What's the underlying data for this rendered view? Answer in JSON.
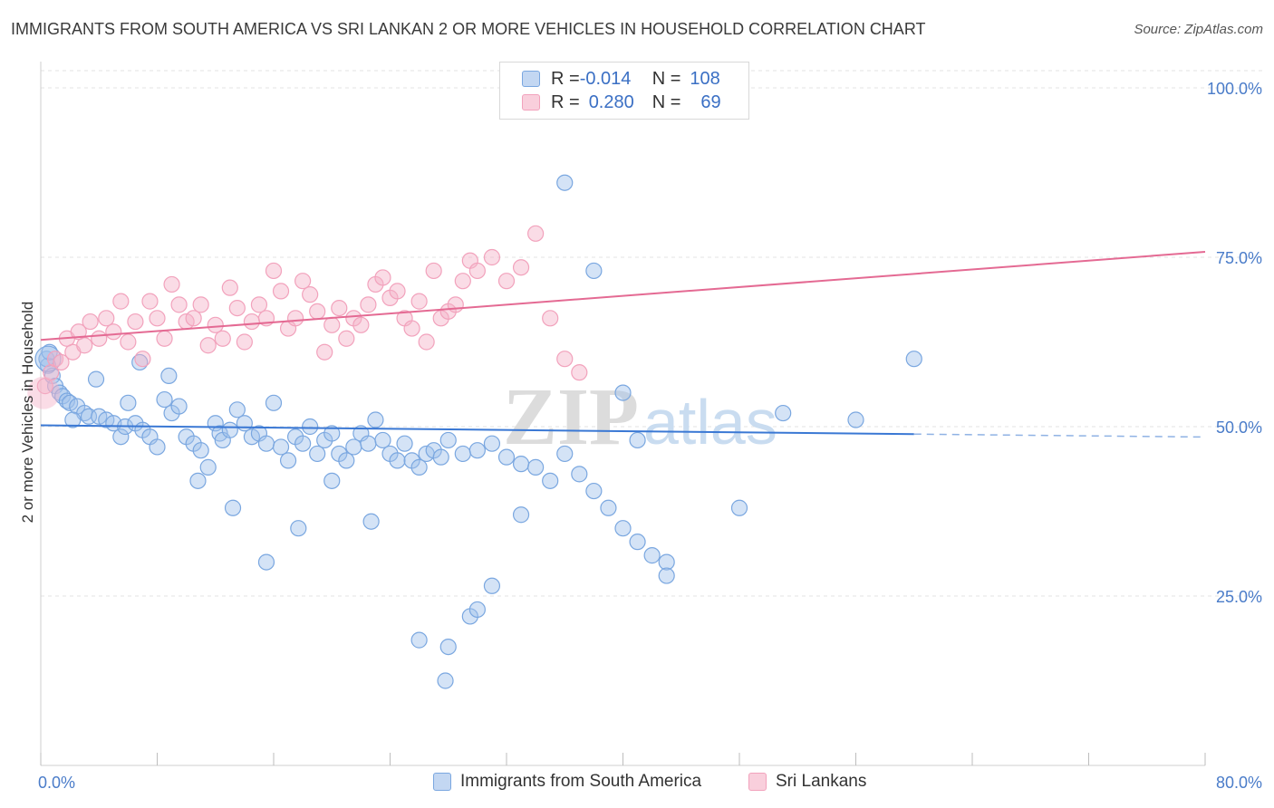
{
  "title": "IMMIGRANTS FROM SOUTH AMERICA VS SRI LANKAN 2 OR MORE VEHICLES IN HOUSEHOLD CORRELATION CHART",
  "source": "Source: ZipAtlas.com",
  "watermark": "ZIPatlas",
  "legend_top": {
    "rows": [
      {
        "r_label": "R = ",
        "r_value": "-0.014",
        "n_label": "N = ",
        "n_value": "108"
      },
      {
        "r_label": "R = ",
        "r_value": "0.280",
        "n_label": "N = ",
        "n_value": "69"
      }
    ]
  },
  "chart_data": {
    "type": "scatter",
    "title": "IMMIGRANTS FROM SOUTH AMERICA VS SRI LANKAN 2 OR MORE VEHICLES IN HOUSEHOLD CORRELATION CHART",
    "xlabel": "",
    "ylabel": "2 or more Vehicles in Household",
    "xlim": [
      0,
      80
    ],
    "ylim": [
      0,
      105
    ],
    "x_tick_labels": [
      "0.0%",
      "80.0%"
    ],
    "y_tick_labels": [
      "25.0%",
      "50.0%",
      "75.0%",
      "100.0%"
    ],
    "y_ticks": [
      25,
      50,
      75,
      100
    ],
    "grid": true,
    "legend_position": "bottom",
    "series": [
      {
        "name": "Immigrants from South America",
        "color": "#7aa7e0",
        "trend": {
          "x": [
            0,
            60
          ],
          "y": [
            50.2,
            48.9
          ],
          "dashed_to": 80
        },
        "points": [
          [
            0.5,
            59
          ],
          [
            0.8,
            57.5
          ],
          [
            1,
            56
          ],
          [
            1.3,
            55
          ],
          [
            1.5,
            54.5
          ],
          [
            1.8,
            53.8
          ],
          [
            2,
            53.5
          ],
          [
            2.5,
            53
          ],
          [
            3,
            52
          ],
          [
            3.3,
            51.5
          ],
          [
            4,
            51.5
          ],
          [
            4.5,
            51
          ],
          [
            5,
            50.5
          ],
          [
            5.5,
            48.5
          ],
          [
            5.8,
            50
          ],
          [
            6,
            53.5
          ],
          [
            6.5,
            50.5
          ],
          [
            7,
            49.5
          ],
          [
            7.5,
            48.5
          ],
          [
            8,
            47
          ],
          [
            8.5,
            54
          ],
          [
            9,
            52
          ],
          [
            9.5,
            53
          ],
          [
            10,
            48.5
          ],
          [
            10.5,
            47.5
          ],
          [
            11,
            46.5
          ],
          [
            11.5,
            44
          ],
          [
            12,
            50.5
          ],
          [
            12.3,
            49
          ],
          [
            12.5,
            48
          ],
          [
            13,
            49.5
          ],
          [
            13.5,
            52.5
          ],
          [
            14,
            50.5
          ],
          [
            14.5,
            48.5
          ],
          [
            15,
            49
          ],
          [
            15.5,
            47.5
          ],
          [
            16,
            53.5
          ],
          [
            16.5,
            47
          ],
          [
            17,
            45
          ],
          [
            17.5,
            48.5
          ],
          [
            18,
            47.5
          ],
          [
            18.5,
            50
          ],
          [
            19,
            46
          ],
          [
            19.5,
            48
          ],
          [
            20,
            49
          ],
          [
            20.5,
            46
          ],
          [
            21,
            45
          ],
          [
            21.5,
            47
          ],
          [
            22,
            49
          ],
          [
            22.5,
            47.5
          ],
          [
            23,
            51
          ],
          [
            23.5,
            48
          ],
          [
            24,
            46
          ],
          [
            24.5,
            45
          ],
          [
            25,
            47.5
          ],
          [
            25.5,
            45
          ],
          [
            26,
            44
          ],
          [
            26.5,
            46
          ],
          [
            27,
            46.5
          ],
          [
            27.5,
            45.5
          ],
          [
            28,
            48
          ],
          [
            29,
            46
          ],
          [
            30,
            46.5
          ],
          [
            31,
            47.5
          ],
          [
            32,
            45.5
          ],
          [
            33,
            44.5
          ],
          [
            34,
            44
          ],
          [
            35,
            42
          ],
          [
            36,
            46
          ],
          [
            37,
            43
          ],
          [
            38,
            40.5
          ],
          [
            39,
            38
          ],
          [
            40,
            35
          ],
          [
            41,
            33
          ],
          [
            42,
            31
          ],
          [
            43,
            30
          ],
          [
            0.4,
            60
          ],
          [
            0.6,
            61
          ],
          [
            2.2,
            51
          ],
          [
            3.8,
            57
          ],
          [
            6.8,
            59.5
          ],
          [
            8.8,
            57.5
          ],
          [
            10.8,
            42
          ],
          [
            13.2,
            38
          ],
          [
            15.5,
            30
          ],
          [
            17.7,
            35
          ],
          [
            20,
            42
          ],
          [
            22.7,
            36
          ],
          [
            26,
            18.5
          ],
          [
            27.8,
            12.5
          ],
          [
            28,
            17.5
          ],
          [
            29.5,
            22
          ],
          [
            30,
            23
          ],
          [
            31,
            26.5
          ],
          [
            33,
            37
          ],
          [
            36,
            86
          ],
          [
            38,
            73
          ],
          [
            40,
            55
          ],
          [
            41,
            48
          ],
          [
            43,
            28
          ],
          [
            48,
            38
          ],
          [
            51,
            52
          ],
          [
            56,
            51
          ],
          [
            60,
            60
          ]
        ]
      },
      {
        "name": "Sri Lankans",
        "color": "#f2a2bc",
        "trend": {
          "x": [
            0,
            80
          ],
          "y": [
            62.8,
            75.8
          ]
        },
        "points": [
          [
            0.3,
            56
          ],
          [
            0.7,
            58
          ],
          [
            1,
            60
          ],
          [
            1.4,
            59.5
          ],
          [
            1.8,
            63
          ],
          [
            2.2,
            61
          ],
          [
            2.6,
            64
          ],
          [
            3,
            62
          ],
          [
            3.4,
            65.5
          ],
          [
            4,
            63
          ],
          [
            4.5,
            66
          ],
          [
            5,
            64
          ],
          [
            5.5,
            68.5
          ],
          [
            6,
            62.5
          ],
          [
            6.5,
            65.5
          ],
          [
            7,
            60
          ],
          [
            7.5,
            68.5
          ],
          [
            8,
            66
          ],
          [
            8.5,
            63
          ],
          [
            9,
            71
          ],
          [
            9.5,
            68
          ],
          [
            10,
            65.5
          ],
          [
            10.5,
            66
          ],
          [
            11,
            68
          ],
          [
            11.5,
            62
          ],
          [
            12,
            65
          ],
          [
            12.5,
            63
          ],
          [
            13,
            70.5
          ],
          [
            13.5,
            67.5
          ],
          [
            14,
            62.5
          ],
          [
            14.5,
            65.5
          ],
          [
            15,
            68
          ],
          [
            15.5,
            66
          ],
          [
            16,
            73
          ],
          [
            16.5,
            70
          ],
          [
            17,
            64.5
          ],
          [
            17.5,
            66
          ],
          [
            18,
            71.5
          ],
          [
            18.5,
            69.5
          ],
          [
            19,
            67
          ],
          [
            19.5,
            61
          ],
          [
            20,
            65
          ],
          [
            20.5,
            67.5
          ],
          [
            21,
            63
          ],
          [
            21.5,
            66
          ],
          [
            22,
            65
          ],
          [
            22.5,
            68
          ],
          [
            23,
            71
          ],
          [
            23.5,
            72
          ],
          [
            24,
            69
          ],
          [
            24.5,
            70
          ],
          [
            25,
            66
          ],
          [
            25.5,
            64.5
          ],
          [
            26,
            68.5
          ],
          [
            26.5,
            62.5
          ],
          [
            27,
            73
          ],
          [
            27.5,
            66
          ],
          [
            28,
            67
          ],
          [
            28.5,
            68
          ],
          [
            29,
            71.5
          ],
          [
            29.5,
            74.5
          ],
          [
            30,
            73
          ],
          [
            31,
            75
          ],
          [
            32,
            71.5
          ],
          [
            33,
            73.5
          ],
          [
            34,
            78.5
          ],
          [
            35,
            66
          ],
          [
            36,
            60
          ],
          [
            37,
            58
          ]
        ]
      }
    ]
  },
  "legend_bottom": [
    {
      "label": "Immigrants from South America",
      "color": "#7aa7e0"
    },
    {
      "label": "Sri Lankans",
      "color": "#f2a2bc"
    }
  ]
}
